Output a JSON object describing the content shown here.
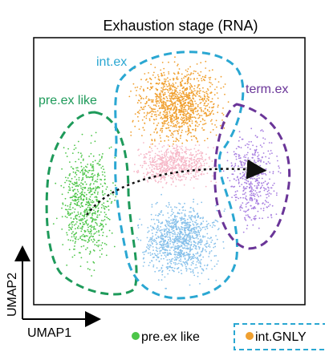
{
  "chart_data": {
    "type": "scatter",
    "title": "Exhaustion  stage (RNA)",
    "xlabel": "UMAP1",
    "ylabel": "UMAP2",
    "grid": false,
    "legend_placement": "bottom",
    "series": [
      {
        "name": "pre.ex like",
        "color": "#4cc548"
      },
      {
        "name": "int.ex",
        "color": "#f0a030"
      },
      {
        "name": "int.GNLY",
        "color": "#f0a030"
      },
      {
        "name": "term.ex",
        "color": "#a77ee0"
      }
    ],
    "clusters": [
      {
        "id": "pre-ex-like",
        "label": "pre.ex like",
        "color": "#4cc548",
        "outline": "#1e9a5a"
      },
      {
        "id": "int-ex",
        "label": "int.ex",
        "color": "#f0a030",
        "outline": "#2aa7d2"
      },
      {
        "id": "term-ex",
        "label": "term.ex",
        "color": "#a77ee0",
        "outline": "#6a3598"
      }
    ],
    "extra_colors": {
      "pink": "#f6b8c8",
      "blue": "#86c0ea",
      "trajectory": "#111111"
    },
    "legend": [
      {
        "label": "pre.ex like",
        "color": "#4cc548",
        "boxed": false
      },
      {
        "label": "int.GNLY",
        "color": "#f0a030",
        "boxed": true
      }
    ]
  }
}
